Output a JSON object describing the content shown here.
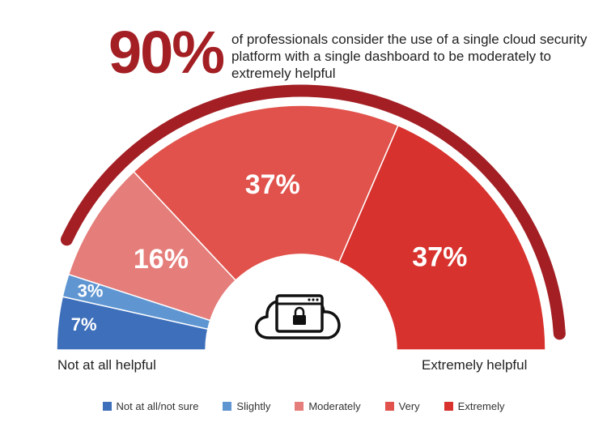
{
  "headline": {
    "stat": "90%",
    "text": "of professionals consider the use of a single cloud security platform with a single dashboard to be moderately to extremely helpful"
  },
  "chart_data": {
    "type": "pie",
    "subtype": "half-donut",
    "categories": [
      "Not at all/not sure",
      "Slightly",
      "Moderately",
      "Very",
      "Extremely"
    ],
    "values": [
      7,
      3,
      16,
      37,
      37
    ],
    "labels": [
      "7%",
      "3%",
      "16%",
      "37%",
      "37%"
    ],
    "colors": [
      "#3d6fbb",
      "#5f96d2",
      "#e57d7a",
      "#e0524b",
      "#d7322e"
    ],
    "scale_start_label": "Not at all helpful",
    "scale_end_label": "Extremely helpful",
    "arc_color": "#a31f24",
    "legend_position": "bottom"
  },
  "center_icon": "cloud-lock-browser-icon"
}
